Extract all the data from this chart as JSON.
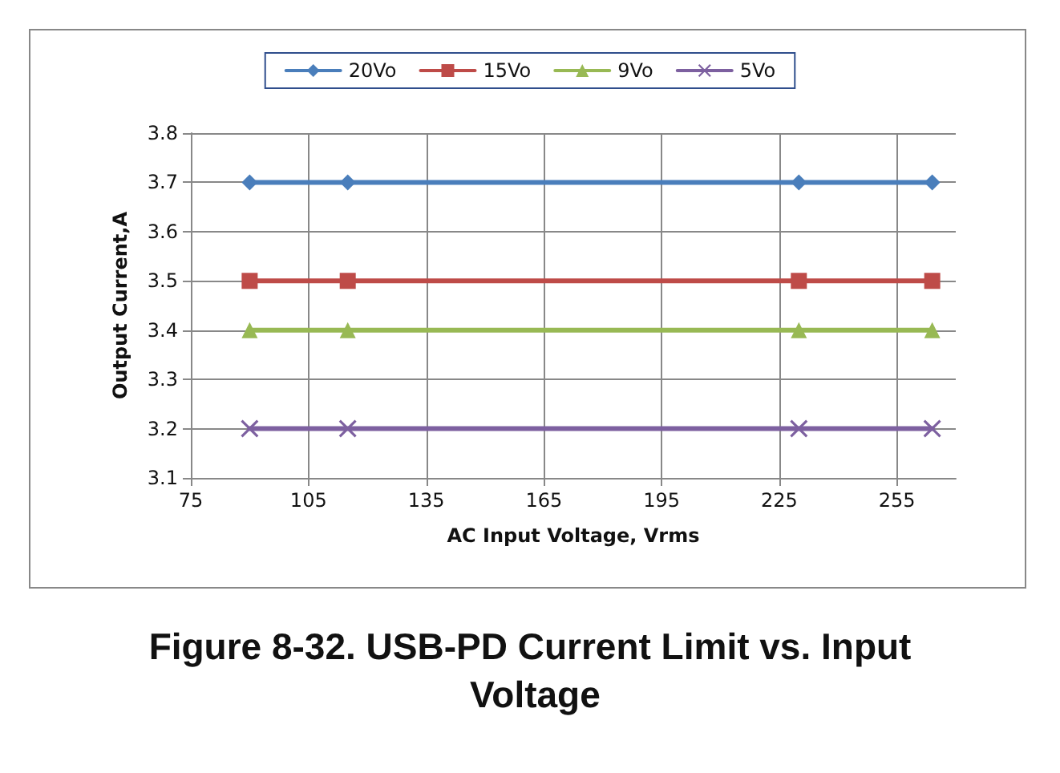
{
  "chart_data": {
    "type": "line",
    "title": "Figure 8-32. USB-PD Current Limit vs. Input Voltage",
    "xlabel": "AC Input Voltage, Vrms",
    "ylabel": "Output Current,A",
    "x": [
      90,
      115,
      230,
      264
    ],
    "series": [
      {
        "name": "20Vo",
        "color": "#4a7ebb",
        "marker": "diamond",
        "values": [
          3.7,
          3.7,
          3.7,
          3.7
        ]
      },
      {
        "name": "15Vo",
        "color": "#be4b48",
        "marker": "square",
        "values": [
          3.5,
          3.5,
          3.5,
          3.5
        ]
      },
      {
        "name": "9Vo",
        "color": "#98b954",
        "marker": "triangle",
        "values": [
          3.4,
          3.4,
          3.4,
          3.4
        ]
      },
      {
        "name": "5Vo",
        "color": "#7d60a0",
        "marker": "cross",
        "values": [
          3.2,
          3.2,
          3.2,
          3.2
        ]
      }
    ],
    "xlim": [
      75,
      270
    ],
    "xticks": [
      75,
      105,
      135,
      165,
      195,
      225,
      255
    ],
    "ylim": [
      3.1,
      3.8
    ],
    "yticks": [
      3.1,
      3.2,
      3.3,
      3.4,
      3.5,
      3.6,
      3.7,
      3.8
    ],
    "grid": true,
    "legend": "top",
    "line_style": "solid"
  }
}
